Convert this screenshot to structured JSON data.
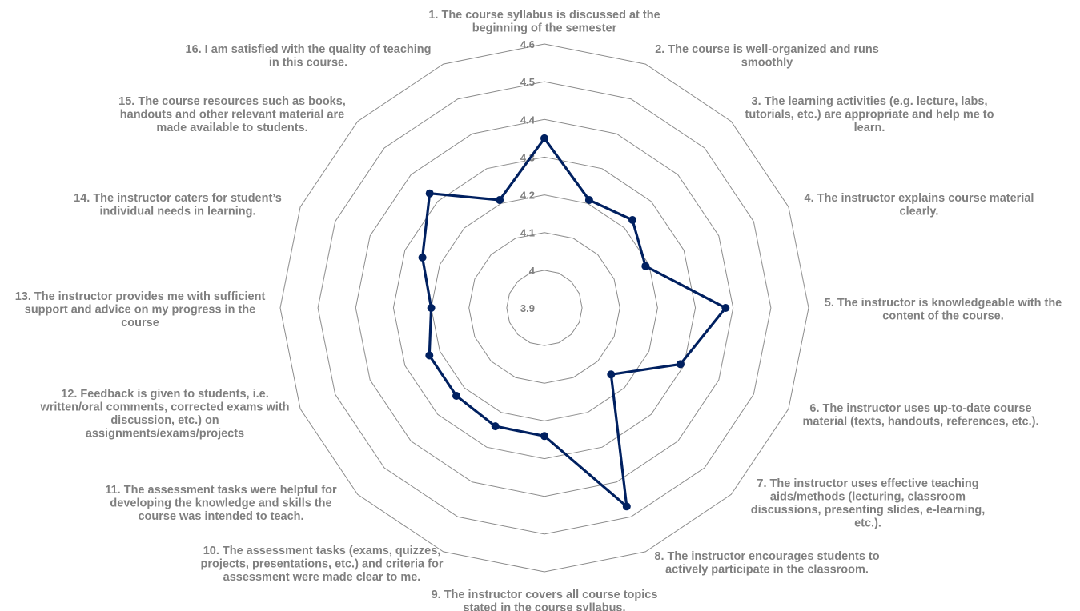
{
  "chart_data": {
    "type": "radar",
    "title": "",
    "categories": [
      [
        "1. The course syllabus is discussed at the",
        "beginning of the semester"
      ],
      [
        "2. The course is well-organized and runs",
        "smoothly"
      ],
      [
        "3. The learning activities (e.g. lecture, labs,",
        "tutorials, etc.) are appropriate and help me to",
        "learn."
      ],
      [
        "4. The instructor explains course material",
        "clearly."
      ],
      [
        "5. The instructor is knowledgeable with the",
        "content of the course."
      ],
      [
        "6. The instructor uses up-to-date course",
        "material (texts, handouts, references, etc.)."
      ],
      [
        "7. The instructor uses effective teaching",
        "aids/methods (lecturing, classroom",
        "discussions, presenting slides, e-learning,",
        "etc.)."
      ],
      [
        "8. The instructor encourages students to",
        "actively participate in the classroom."
      ],
      [
        "9. The instructor covers all course topics",
        "stated in the course syllabus."
      ],
      [
        "10. The assessment tasks (exams, quizzes,",
        "projects, presentations, etc.) and criteria for",
        "assessment were made clear to me."
      ],
      [
        "11. The assessment tasks were helpful for",
        "developing the knowledge and skills the",
        "course was intended to teach."
      ],
      [
        "12. Feedback is given to students, i.e.",
        "written/oral comments, corrected exams with",
        "discussion, etc.) on",
        "assignments/exams/projects"
      ],
      [
        "13. The instructor provides me with sufficient",
        "support and advice on my progress in the",
        "course"
      ],
      [
        "14. The instructor caters for student’s",
        "individual needs in learning."
      ],
      [
        "15. The course resources such as books,",
        "handouts and other relevant material are",
        "made available to students."
      ],
      [
        "16. I am satisfied with the quality of teaching",
        "in this course."
      ]
    ],
    "series": [
      {
        "name": "",
        "values": [
          4.35,
          4.21,
          4.23,
          4.19,
          4.38,
          4.29,
          4.15,
          4.47,
          4.24,
          4.24,
          4.23,
          4.23,
          4.2,
          4.25,
          4.33,
          4.21
        ]
      }
    ],
    "rlim": [
      3.9,
      4.6
    ],
    "ticks": [
      "3.9",
      "4",
      "4.1",
      "4.2",
      "4.3",
      "4.4",
      "4.5",
      "4.6"
    ],
    "tick_values": [
      3.9,
      4.0,
      4.1,
      4.2,
      4.3,
      4.4,
      4.5,
      4.6
    ],
    "grid": true,
    "legend": "none",
    "colors": {
      "series": "#002060",
      "grid": "#8c8c8c",
      "labels": "#7f7f7f"
    }
  }
}
